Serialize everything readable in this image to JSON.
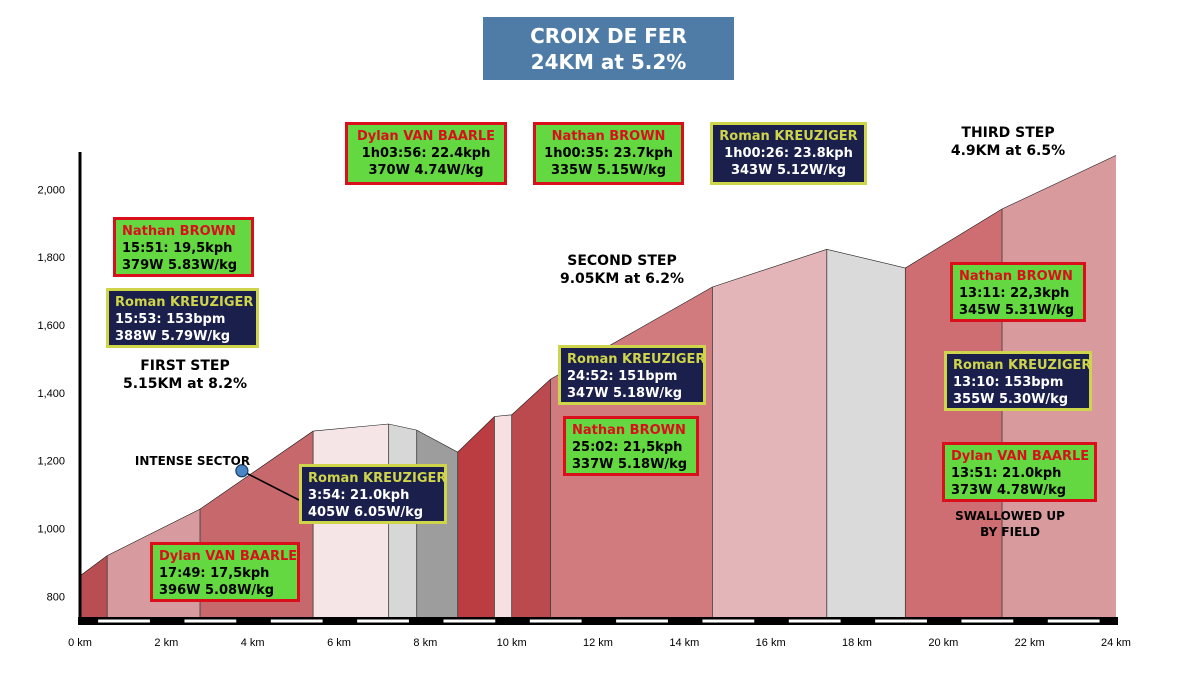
{
  "title": {
    "line1": "CROIX DE FER",
    "line2": "24KM at 5.2%"
  },
  "chart_data": {
    "type": "area",
    "xlim": [
      0,
      24
    ],
    "ylim": [
      730,
      2110
    ],
    "x_ticks": [
      "0 km",
      "2 km",
      "4 km",
      "6 km",
      "8 km",
      "10 km",
      "12 km",
      "14 km",
      "16 km",
      "18 km",
      "20 km",
      "22 km",
      "24 km"
    ],
    "y_ticks": [
      "800",
      "1,000",
      "1,200",
      "1,400",
      "1,600",
      "1,800",
      "2,000"
    ],
    "profile": [
      {
        "x": 0,
        "y": 860
      },
      {
        "x": 0.63,
        "y": 920
      },
      {
        "x": 2.78,
        "y": 1057
      },
      {
        "x": 5.4,
        "y": 1287
      },
      {
        "x": 7.15,
        "y": 1308
      },
      {
        "x": 7.8,
        "y": 1290
      },
      {
        "x": 8.75,
        "y": 1225
      },
      {
        "x": 9.6,
        "y": 1330
      },
      {
        "x": 10.0,
        "y": 1335
      },
      {
        "x": 10.9,
        "y": 1440
      },
      {
        "x": 14.65,
        "y": 1712
      },
      {
        "x": 17.3,
        "y": 1823
      },
      {
        "x": 19.12,
        "y": 1768
      },
      {
        "x": 21.36,
        "y": 1942
      },
      {
        "x": 24,
        "y": 2100
      }
    ],
    "segments": [
      {
        "from": 0,
        "to": 0.63,
        "color": "#b84d52"
      },
      {
        "from": 0.63,
        "to": 2.78,
        "color": "#d79a9e"
      },
      {
        "from": 2.78,
        "to": 5.4,
        "color": "#c7686d"
      },
      {
        "from": 5.4,
        "to": 7.15,
        "color": "#f6e5e6"
      },
      {
        "from": 7.15,
        "to": 7.8,
        "color": "#d7d7d7"
      },
      {
        "from": 7.8,
        "to": 8.75,
        "color": "#9d9d9d"
      },
      {
        "from": 8.75,
        "to": 9.6,
        "color": "#bb3d42"
      },
      {
        "from": 9.6,
        "to": 10.0,
        "color": "#f6e0e1"
      },
      {
        "from": 10.0,
        "to": 10.9,
        "color": "#bb4a4f"
      },
      {
        "from": 10.9,
        "to": 14.65,
        "color": "#d17b7f"
      },
      {
        "from": 14.65,
        "to": 17.3,
        "color": "#e3b5b8"
      },
      {
        "from": 17.3,
        "to": 19.12,
        "color": "#dadada"
      },
      {
        "from": 19.12,
        "to": 21.36,
        "color": "#cf6e72"
      },
      {
        "from": 21.36,
        "to": 24,
        "color": "#d99a9d"
      }
    ],
    "intense_marker": {
      "x": 3.75,
      "y": 1170
    }
  },
  "annotations": {
    "first_step": {
      "line1": "FIRST STEP",
      "line2": "5.15KM at 8.2%"
    },
    "second_step": {
      "line1": "SECOND STEP",
      "line2": "9.05KM at 6.2%"
    },
    "third_step": {
      "line1": "THIRD STEP",
      "line2": "4.9KM at 6.5%"
    },
    "intense_sector": "INTENSE SECTOR",
    "swallowed": {
      "line1": "SWALLOWED UP",
      "line2": "BY FIELD"
    }
  },
  "boxes": {
    "b1": {
      "name": "Nathan BROWN",
      "line1": "15:51: 19,5kph",
      "line2": "379W 5.83W/kg"
    },
    "b2": {
      "name": "Roman KREUZIGER",
      "line1": "15:53: 153bpm",
      "line2": "388W 5.79W/kg"
    },
    "b3": {
      "name": "Dylan VAN BAARLE",
      "line1": "17:49: 17,5kph",
      "line2": "396W 5.08W/kg"
    },
    "b4": {
      "name": "Roman KREUZIGER",
      "line1": "3:54: 21.0kph",
      "line2": "405W 6.05W/kg"
    },
    "b5": {
      "name": "Dylan VAN BAARLE",
      "line1": "1h03:56: 22.4kph",
      "line2": "370W 4.74W/kg"
    },
    "b6": {
      "name": "Nathan BROWN",
      "line1": "1h00:35: 23.7kph",
      "line2": "335W 5.15W/kg"
    },
    "b7": {
      "name": "Roman KREUZIGER",
      "line1": "1h00:26: 23.8kph",
      "line2": "343W 5.12W/kg"
    },
    "b8": {
      "name": "Roman KREUZIGER",
      "line1": "24:52: 151bpm",
      "line2": "347W 5.18W/kg"
    },
    "b9": {
      "name": "Nathan BROWN",
      "line1": "25:02: 21,5kph",
      "line2": "337W 5.18W/kg"
    },
    "b10": {
      "name": "Nathan BROWN",
      "line1": "13:11: 22,3kph",
      "line2": "345W 5.31W/kg"
    },
    "b11": {
      "name": "Roman KREUZIGER",
      "line1": "13:10: 153bpm",
      "line2": "355W 5.30W/kg"
    },
    "b12": {
      "name": "Dylan VAN BAARLE",
      "line1": "13:51: 21.0kph",
      "line2": "373W 4.78W/kg"
    }
  },
  "colors": {
    "title_bg": "#4f7ca6",
    "green_box": "#63d840",
    "green_border": "#d9101c",
    "navy_box": "#1a1f4c",
    "navy_border": "#cfd54a",
    "marker": "#4a86c5"
  }
}
